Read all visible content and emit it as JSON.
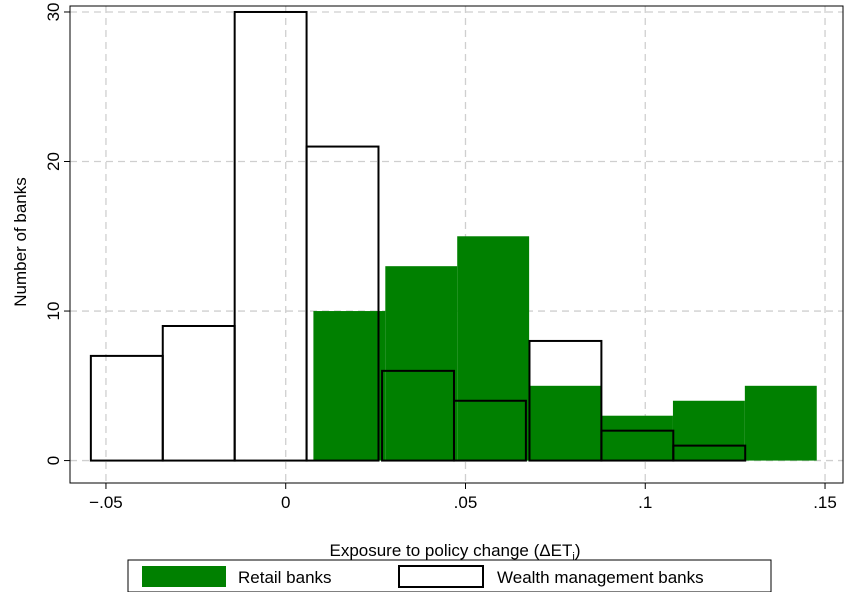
{
  "chart_data": {
    "type": "bar",
    "xlabel_main": "Exposure to policy change (",
    "xlabel_symbol": "ΔET",
    "xlabel_sub": "i",
    "xlabel_close": ")",
    "ylabel": "Number of banks",
    "xlim": [
      -0.06,
      0.155
    ],
    "ylim": [
      -1.5,
      30.4
    ],
    "x_ticks": [
      {
        "value": -0.05,
        "label": "−.05"
      },
      {
        "value": 0,
        "label": "0"
      },
      {
        "value": 0.05,
        "label": ".05"
      },
      {
        "value": 0.1,
        "label": ".1"
      },
      {
        "value": 0.15,
        "label": ".15"
      }
    ],
    "y_ticks": [
      {
        "value": 0,
        "label": "0"
      },
      {
        "value": 10,
        "label": "10"
      },
      {
        "value": 20,
        "label": "20"
      },
      {
        "value": 30,
        "label": "30"
      }
    ],
    "grid": true,
    "legend_position": "bottom",
    "series": [
      {
        "name": "Retail banks",
        "style": "filled",
        "color": "#008000",
        "bins": [
          {
            "x0": 0.0077,
            "x1": 0.0277,
            "count": 10
          },
          {
            "x0": 0.0277,
            "x1": 0.0477,
            "count": 13
          },
          {
            "x0": 0.0477,
            "x1": 0.0677,
            "count": 15
          },
          {
            "x0": 0.0677,
            "x1": 0.0877,
            "count": 5
          },
          {
            "x0": 0.0877,
            "x1": 0.1077,
            "count": 3
          },
          {
            "x0": 0.1077,
            "x1": 0.1277,
            "count": 4
          },
          {
            "x0": 0.1277,
            "x1": 0.1477,
            "count": 5
          }
        ]
      },
      {
        "name": "Wealth management banks",
        "style": "outline",
        "color": "#000000",
        "bins": [
          {
            "x0": -0.0542,
            "x1": -0.0342,
            "count": 7
          },
          {
            "x0": -0.0342,
            "x1": -0.0142,
            "count": 9
          },
          {
            "x0": -0.0142,
            "x1": 0.0058,
            "count": 30
          },
          {
            "x0": 0.0058,
            "x1": 0.0258,
            "count": 21
          },
          {
            "x0": 0.0268,
            "x1": 0.0468,
            "count": 6
          },
          {
            "x0": 0.0468,
            "x1": 0.0668,
            "count": 4
          },
          {
            "x0": 0.0678,
            "x1": 0.0878,
            "count": 8
          },
          {
            "x0": 0.0878,
            "x1": 0.1078,
            "count": 2
          },
          {
            "x0": 0.1078,
            "x1": 0.1278,
            "count": 1
          }
        ]
      }
    ]
  }
}
